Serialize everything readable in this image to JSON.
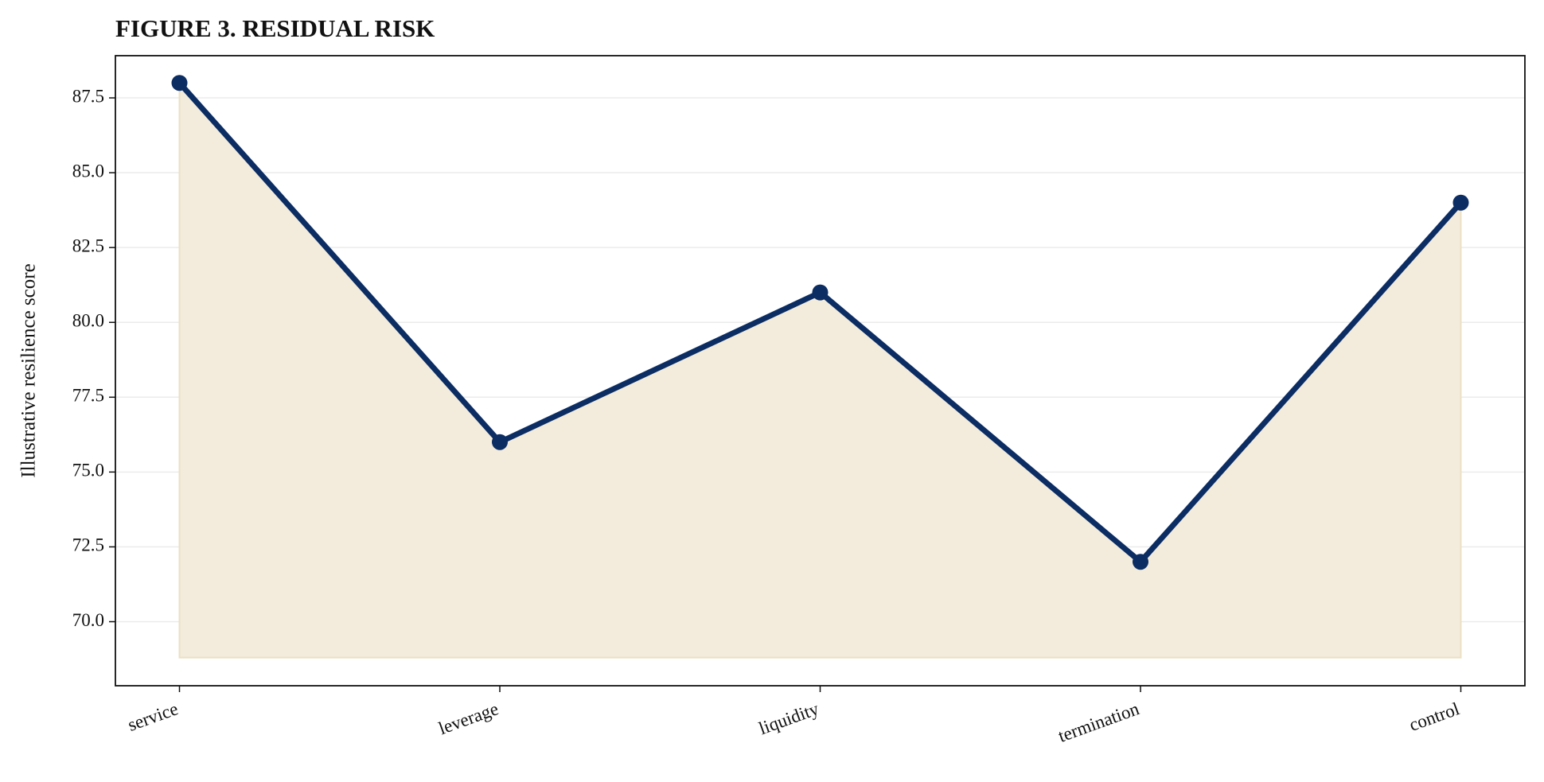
{
  "chart_data": {
    "type": "line",
    "title": "FIGURE 3. RESIDUAL RISK",
    "y_label": "Illustrative resilience score",
    "categories": [
      "service",
      "leverage",
      "liquidity",
      "termination",
      "control"
    ],
    "values": [
      88,
      76,
      81,
      72,
      84
    ],
    "color": "#0b2d63",
    "fill_color": "#f3ecdc",
    "fill_baseline": 68.8,
    "ylim": [
      67.86,
      88.91
    ],
    "yticks": [
      {
        "value": 70,
        "label": "70.0"
      },
      72.5,
      {
        "value": 75,
        "label": "75.0"
      },
      77.5,
      {
        "value": 80,
        "label": "80.0"
      },
      82.5,
      {
        "value": 85,
        "label": "85.0"
      },
      87.5
    ],
    "grid": true
  }
}
